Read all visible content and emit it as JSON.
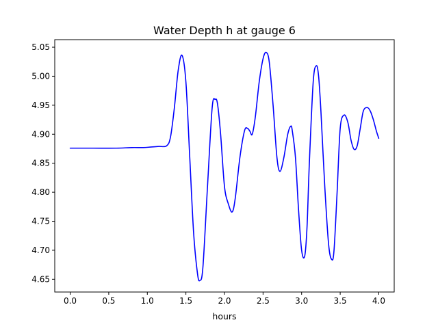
{
  "chart_data": {
    "type": "line",
    "title": "Water Depth h at gauge 6",
    "xlabel": "hours",
    "ylabel": "",
    "xlim": [
      -0.2,
      4.2
    ],
    "ylim": [
      4.628,
      5.063
    ],
    "xticks": [
      0.0,
      0.5,
      1.0,
      1.5,
      2.0,
      2.5,
      3.0,
      3.5,
      4.0
    ],
    "xtick_labels": [
      "0.0",
      "0.5",
      "1.0",
      "1.5",
      "2.0",
      "2.5",
      "3.0",
      "3.5",
      "4.0"
    ],
    "yticks": [
      4.65,
      4.7,
      4.75,
      4.8,
      4.85,
      4.9,
      4.95,
      5.0,
      5.05
    ],
    "ytick_labels": [
      "4.65",
      "4.70",
      "4.75",
      "4.80",
      "4.85",
      "4.90",
      "4.95",
      "5.00",
      "5.05"
    ],
    "grid": false,
    "series": [
      {
        "color": "#0000ff",
        "x": [
          0.0,
          0.3,
          0.6,
          0.8,
          0.95,
          1.05,
          1.15,
          1.25,
          1.3,
          1.35,
          1.4,
          1.45,
          1.5,
          1.55,
          1.6,
          1.65,
          1.68,
          1.72,
          1.78,
          1.84,
          1.88,
          1.91,
          1.95,
          2.0,
          2.05,
          2.1,
          2.14,
          2.2,
          2.26,
          2.3,
          2.33,
          2.36,
          2.4,
          2.45,
          2.5,
          2.54,
          2.58,
          2.63,
          2.68,
          2.72,
          2.77,
          2.82,
          2.86,
          2.88,
          2.92,
          2.96,
          3.0,
          3.04,
          3.07,
          3.1,
          3.15,
          3.19,
          3.22,
          3.25,
          3.3,
          3.35,
          3.39,
          3.42,
          3.46,
          3.5,
          3.55,
          3.6,
          3.64,
          3.68,
          3.72,
          3.76,
          3.8,
          3.85,
          3.89,
          3.93,
          3.97,
          4.0
        ],
        "y": [
          4.876,
          4.876,
          4.876,
          4.877,
          4.877,
          4.878,
          4.879,
          4.88,
          4.895,
          4.945,
          5.01,
          5.036,
          4.99,
          4.86,
          4.73,
          4.66,
          4.648,
          4.67,
          4.81,
          4.945,
          4.96,
          4.952,
          4.9,
          4.81,
          4.78,
          4.766,
          4.79,
          4.86,
          4.906,
          4.91,
          4.905,
          4.9,
          4.93,
          4.99,
          5.03,
          5.041,
          5.025,
          4.95,
          4.86,
          4.836,
          4.86,
          4.9,
          4.914,
          4.905,
          4.86,
          4.77,
          4.7,
          4.69,
          4.74,
          4.85,
          4.99,
          5.018,
          5.0,
          4.94,
          4.81,
          4.71,
          4.684,
          4.7,
          4.8,
          4.91,
          4.933,
          4.92,
          4.89,
          4.874,
          4.88,
          4.91,
          4.94,
          4.946,
          4.94,
          4.925,
          4.905,
          4.893
        ]
      }
    ]
  }
}
